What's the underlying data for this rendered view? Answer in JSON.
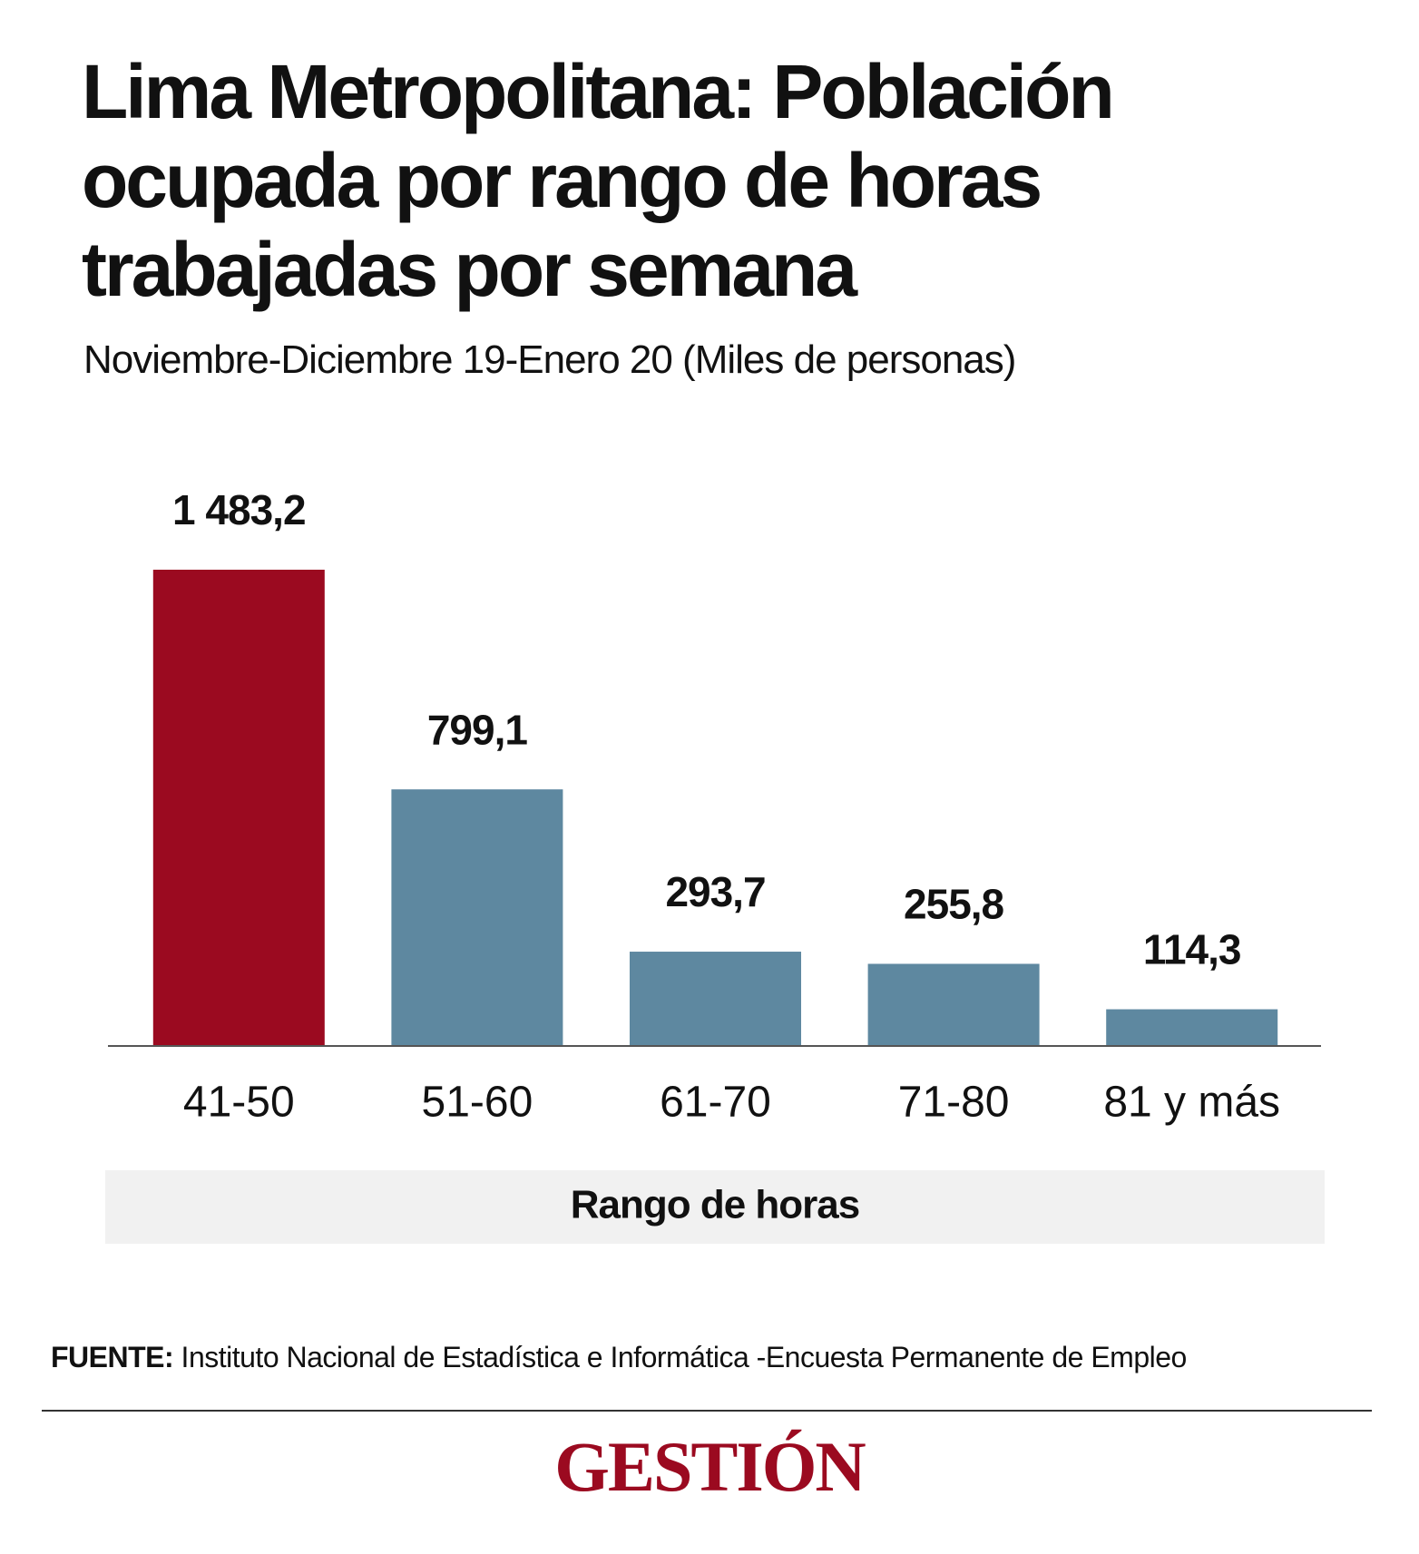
{
  "chart_data": {
    "type": "bar",
    "title": "Lima Metropolitana: Población ocupada por rango de horas trabajadas por semana",
    "subtitle": "Noviembre-Diciembre 19-Enero 20 (Miles de personas)",
    "x_label": "Rango de horas",
    "categories": [
      "41-50",
      "51-60",
      "61-70",
      "71-80",
      "81 y más"
    ],
    "values": [
      1483.2,
      799.1,
      293.7,
      255.8,
      114.3
    ],
    "value_labels": [
      "1 483,2",
      "799,1",
      "293,7",
      "255,8",
      "114,3"
    ],
    "colors": [
      "#9b0a20",
      "#5e88a0",
      "#5e88a0",
      "#5e88a0",
      "#5e88a0"
    ]
  },
  "source": {
    "label": "FUENTE:",
    "text": "Instituto Nacional de Estadística e Informática -Encuesta Permanente de Empleo"
  },
  "logo": "GESTIÓN"
}
